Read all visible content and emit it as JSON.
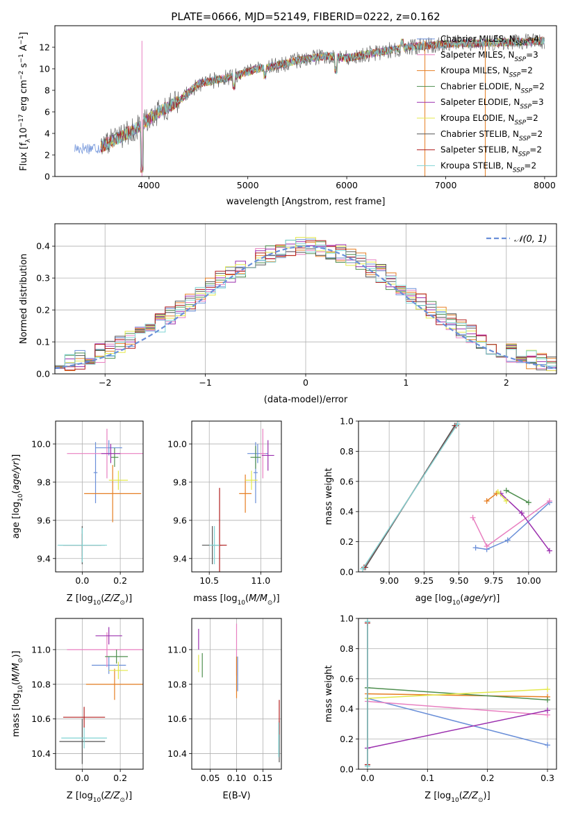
{
  "page_title": "PLATE=0666, MJD=52149, FIBERID=0222, z=0.162",
  "colors": {
    "chabrier_miles": "#6a8fd8",
    "salpeter_miles": "#e87fc0",
    "kroupa_miles": "#e67e22",
    "chabrier_elodie": "#4f8f4f",
    "salpeter_elodie": "#9b2fae",
    "kroupa_elodie": "#e3e84a",
    "chabrier_stelib": "#555555",
    "salpeter_stelib": "#b01e1e",
    "kroupa_stelib": "#7fd3d3",
    "normal_curve": "#6a8fd8",
    "grid": "#b0b0b0"
  },
  "chart_data": [
    {
      "type": "line",
      "title": "PLATE=0666, MJD=52149, FIBERID=0222, z=0.162",
      "xlabel": "wavelength [Angstrom, rest frame]",
      "ylabel": "Flux [fλ10⁻¹⁷ erg cm⁻² s⁻¹ A⁻¹]",
      "xlim": [
        3050,
        8120
      ],
      "ylim": [
        0,
        14
      ],
      "xticks": [
        4000,
        5000,
        6000,
        7000,
        8000
      ],
      "yticks": [
        0,
        2,
        4,
        6,
        8,
        10,
        12
      ],
      "grid": false,
      "legend_position": "bottom-right",
      "series": [
        {
          "name": "Chabrier MILES, N_SSP=4",
          "key": "chabrier_miles"
        },
        {
          "name": "Salpeter MILES, N_SSP=3",
          "key": "salpeter_miles"
        },
        {
          "name": "Kroupa MILES, N_SSP=2",
          "key": "kroupa_miles"
        },
        {
          "name": "Chabrier ELODIE, N_SSP=2",
          "key": "chabrier_elodie"
        },
        {
          "name": "Salpeter ELODIE, N_SSP=3",
          "key": "salpeter_elodie"
        },
        {
          "name": "Kroupa ELODIE, N_SSP=2",
          "key": "kroupa_elodie"
        },
        {
          "name": "Chabrier STELIB, N_SSP=2",
          "key": "chabrier_stelib"
        },
        {
          "name": "Salpeter STELIB, N_SSP=2",
          "key": "salpeter_stelib"
        },
        {
          "name": "Kroupa STELIB, N_SSP=2",
          "key": "kroupa_stelib"
        }
      ],
      "continuum": {
        "x": [
          3250,
          3500,
          3700,
          3900,
          4100,
          4300,
          4500,
          4700,
          4900,
          5100,
          5300,
          5500,
          5800,
          6000,
          6300,
          6600,
          7000,
          7400,
          7800,
          8000
        ],
        "y": [
          2.6,
          2.7,
          3.6,
          4.6,
          6.0,
          7.0,
          8.6,
          9.0,
          9.4,
          10.0,
          10.3,
          10.8,
          11.2,
          11.0,
          11.5,
          12.0,
          12.3,
          12.4,
          12.5,
          12.6
        ]
      },
      "dips": [
        {
          "x": 3930,
          "y": 0.3
        },
        {
          "x": 4860,
          "y": 8.0
        },
        {
          "x": 5175,
          "y": 9.0
        },
        {
          "x": 5890,
          "y": 9.5
        },
        {
          "x": 6560,
          "y": 12.0
        }
      ]
    },
    {
      "type": "line",
      "xlabel": "(data-model)/error",
      "ylabel": "Normed distribution",
      "xlim": [
        -2.5,
        2.5
      ],
      "ylim": [
        0,
        0.47
      ],
      "xticks": [
        -2,
        -1,
        0,
        1,
        2
      ],
      "yticks": [
        0.0,
        0.1,
        0.2,
        0.3,
        0.4
      ],
      "grid": true,
      "legend": "𝒩(0, 1)",
      "normal_mu": 0,
      "normal_sigma": 1,
      "bin_width": 0.1,
      "bins_from": -2.5,
      "bins_to": 2.5
    },
    {
      "type": "scatter",
      "xlabel": "Z [log10(Z/Z⊙)]",
      "ylabel": "age  [log10(age/yr)]",
      "xlim": [
        -0.14,
        0.32
      ],
      "ylim": [
        9.33,
        10.12
      ],
      "xticks": [
        0.0,
        0.2
      ],
      "yticks": [
        9.4,
        9.6,
        9.8,
        10.0
      ],
      "grid": true,
      "points": [
        {
          "key": "chabrier_miles",
          "x": 0.14,
          "y": 9.98,
          "xerr": 0.07,
          "yerr": 0.04
        },
        {
          "key": "chabrier_miles",
          "x": 0.07,
          "y": 9.85,
          "xerr": 0.01,
          "yerr": 0.16
        },
        {
          "key": "salpeter_miles",
          "x": 0.13,
          "y": 9.95,
          "xerr": 0.21,
          "yerr": 0.13
        },
        {
          "key": "kroupa_miles",
          "x": 0.16,
          "y": 9.74,
          "xerr": 0.15,
          "yerr": 0.15
        },
        {
          "key": "chabrier_elodie",
          "x": 0.17,
          "y": 9.93,
          "xerr": 0.02,
          "yerr": 0.05
        },
        {
          "key": "salpeter_elodie",
          "x": 0.15,
          "y": 9.95,
          "xerr": 0.05,
          "yerr": 0.05
        },
        {
          "key": "kroupa_elodie",
          "x": 0.19,
          "y": 9.81,
          "xerr": 0.05,
          "yerr": 0.05
        },
        {
          "key": "chabrier_stelib",
          "x": 0.0,
          "y": 9.47,
          "xerr": 0.12,
          "yerr": 0.1
        },
        {
          "key": "salpeter_stelib",
          "x": 0.0,
          "y": 9.47,
          "xerr": 0.1,
          "yerr": 0.06
        },
        {
          "key": "kroupa_stelib",
          "x": 0.0,
          "y": 9.47,
          "xerr": 0.13,
          "yerr": 0.09
        }
      ]
    },
    {
      "type": "scatter",
      "xlabel": "mass [log10(M/M⊙)]",
      "ylabel": "",
      "xlim": [
        10.33,
        11.2
      ],
      "ylim": [
        9.33,
        10.12
      ],
      "xticks": [
        10.5,
        11.0
      ],
      "yticks": [
        9.4,
        9.6,
        9.8,
        10.0
      ],
      "grid": true,
      "points": [
        {
          "key": "chabrier_miles",
          "x": 10.97,
          "y": 9.95,
          "xerr": 0.1,
          "yerr": 0.05
        },
        {
          "key": "chabrier_miles",
          "x": 10.95,
          "y": 9.85,
          "xerr": 0.02,
          "yerr": 0.16
        },
        {
          "key": "salpeter_miles",
          "x": 11.02,
          "y": 9.95,
          "xerr": 0.03,
          "yerr": 0.13
        },
        {
          "key": "kroupa_miles",
          "x": 10.85,
          "y": 9.74,
          "xerr": 0.06,
          "yerr": 0.1
        },
        {
          "key": "chabrier_elodie",
          "x": 10.95,
          "y": 9.93,
          "xerr": 0.05,
          "yerr": 0.06
        },
        {
          "key": "salpeter_elodie",
          "x": 11.07,
          "y": 9.94,
          "xerr": 0.06,
          "yerr": 0.08
        },
        {
          "key": "kroupa_elodie",
          "x": 10.91,
          "y": 9.81,
          "xerr": 0.06,
          "yerr": 0.05
        },
        {
          "key": "chabrier_stelib",
          "x": 10.53,
          "y": 9.47,
          "xerr": 0.1,
          "yerr": 0.1
        },
        {
          "key": "salpeter_stelib",
          "x": 10.6,
          "y": 9.47,
          "xerr": 0.07,
          "yerr": 0.3
        },
        {
          "key": "kroupa_stelib",
          "x": 10.55,
          "y": 9.47,
          "xerr": 0.05,
          "yerr": 0.1
        }
      ]
    },
    {
      "type": "line",
      "xlabel": "age  [log10(age/yr)]",
      "ylabel": "mass weight",
      "xlim": [
        8.78,
        10.2
      ],
      "ylim": [
        0,
        1.0
      ],
      "xticks": [
        9.0,
        9.25,
        9.5,
        9.75,
        10.0
      ],
      "yticks": [
        0.0,
        0.2,
        0.4,
        0.6,
        0.8,
        1.0
      ],
      "grid": true,
      "series": [
        {
          "key": "chabrier_miles",
          "x": [
            9.62,
            9.7,
            9.85,
            10.15
          ],
          "y": [
            0.16,
            0.15,
            0.21,
            0.46
          ]
        },
        {
          "key": "salpeter_miles",
          "x": [
            9.6,
            9.7,
            10.15
          ],
          "y": [
            0.36,
            0.17,
            0.47
          ]
        },
        {
          "key": "kroupa_miles",
          "x": [
            9.7,
            9.77
          ],
          "y": [
            0.47,
            0.52
          ]
        },
        {
          "key": "chabrier_elodie",
          "x": [
            9.84,
            10.0
          ],
          "y": [
            0.54,
            0.46
          ]
        },
        {
          "key": "salpeter_elodie",
          "x": [
            9.8,
            9.95,
            10.15
          ],
          "y": [
            0.52,
            0.39,
            0.14
          ]
        },
        {
          "key": "kroupa_elodie",
          "x": [
            9.78,
            9.84
          ],
          "y": [
            0.53,
            0.47
          ]
        },
        {
          "key": "chabrier_stelib",
          "x": [
            8.83,
            9.47
          ],
          "y": [
            0.03,
            0.97
          ]
        },
        {
          "key": "salpeter_stelib",
          "x": [
            8.82,
            9.48
          ],
          "y": [
            0.03,
            0.97
          ]
        },
        {
          "key": "kroupa_stelib",
          "x": [
            8.81,
            9.49
          ],
          "y": [
            0.02,
            0.98
          ]
        }
      ]
    },
    {
      "type": "scatter",
      "xlabel": "Z [log10(Z/Z⊙)]",
      "ylabel": "mass [log10(M/M⊙)]",
      "xlim": [
        -0.14,
        0.32
      ],
      "ylim": [
        10.31,
        11.18
      ],
      "xticks": [
        0.0,
        0.2
      ],
      "yticks": [
        10.4,
        10.6,
        10.8,
        11.0
      ],
      "grid": true,
      "points": [
        {
          "key": "chabrier_miles",
          "x": 0.14,
          "y": 10.91,
          "xerr": 0.09,
          "yerr": 0.05
        },
        {
          "key": "salpeter_miles",
          "x": 0.13,
          "y": 11.0,
          "xerr": 0.21,
          "yerr": 0.1
        },
        {
          "key": "kroupa_miles",
          "x": 0.17,
          "y": 10.8,
          "xerr": 0.15,
          "yerr": 0.09
        },
        {
          "key": "chabrier_elodie",
          "x": 0.18,
          "y": 10.96,
          "xerr": 0.06,
          "yerr": 0.04
        },
        {
          "key": "salpeter_elodie",
          "x": 0.14,
          "y": 11.08,
          "xerr": 0.07,
          "yerr": 0.05
        },
        {
          "key": "kroupa_elodie",
          "x": 0.19,
          "y": 10.88,
          "xerr": 0.05,
          "yerr": 0.05
        },
        {
          "key": "chabrier_stelib",
          "x": 0.0,
          "y": 10.47,
          "xerr": 0.12,
          "yerr": 0.13
        },
        {
          "key": "salpeter_stelib",
          "x": 0.01,
          "y": 10.61,
          "xerr": 0.11,
          "yerr": 0.06
        },
        {
          "key": "kroupa_stelib",
          "x": 0.01,
          "y": 10.49,
          "xerr": 0.12,
          "yerr": 0.06
        }
      ]
    },
    {
      "type": "scatter",
      "xlabel": "E(B-V)",
      "ylabel": "",
      "xlim": [
        0.015,
        0.185
      ],
      "ylim": [
        10.31,
        11.18
      ],
      "xticks": [
        0.05,
        0.1,
        0.15
      ],
      "yticks": [
        10.4,
        10.6,
        10.8,
        11.0
      ],
      "grid": true,
      "points": [
        {
          "key": "chabrier_miles",
          "x": 0.102,
          "y": 10.86,
          "xerr": 0,
          "yerr": 0.1
        },
        {
          "key": "salpeter_miles",
          "x": 0.1,
          "y": 11.0,
          "xerr": 0,
          "yerr": 0.15
        },
        {
          "key": "kroupa_miles",
          "x": 0.1,
          "y": 10.84,
          "xerr": 0,
          "yerr": 0.12
        },
        {
          "key": "chabrier_elodie",
          "x": 0.035,
          "y": 10.91,
          "xerr": 0,
          "yerr": 0.07
        },
        {
          "key": "salpeter_elodie",
          "x": 0.028,
          "y": 11.06,
          "xerr": 0,
          "yerr": 0.06
        },
        {
          "key": "kroupa_elodie",
          "x": 0.028,
          "y": 10.92,
          "xerr": 0,
          "yerr": 0.05
        },
        {
          "key": "chabrier_stelib",
          "x": 0.181,
          "y": 10.47,
          "xerr": 0,
          "yerr": 0.12
        },
        {
          "key": "salpeter_stelib",
          "x": 0.181,
          "y": 10.61,
          "xerr": 0,
          "yerr": 0.1
        },
        {
          "key": "kroupa_stelib",
          "x": 0.18,
          "y": 10.48,
          "xerr": 0,
          "yerr": 0.1
        }
      ]
    },
    {
      "type": "line",
      "xlabel": "Z [log10(Z/Z⊙)]",
      "ylabel": "mass weight",
      "xlim": [
        -0.015,
        0.315
      ],
      "ylim": [
        0,
        1.0
      ],
      "xticks": [
        0.0,
        0.1,
        0.2,
        0.3
      ],
      "yticks": [
        0.0,
        0.2,
        0.4,
        0.6,
        0.8,
        1.0
      ],
      "grid": true,
      "series": [
        {
          "key": "chabrier_miles",
          "x": [
            0.0,
            0.3
          ],
          "y": [
            0.47,
            0.16
          ]
        },
        {
          "key": "salpeter_miles",
          "x": [
            0.0,
            0.3
          ],
          "y": [
            0.45,
            0.36
          ]
        },
        {
          "key": "kroupa_miles",
          "x": [
            0.0,
            0.3
          ],
          "y": [
            0.5,
            0.48
          ]
        },
        {
          "key": "chabrier_elodie",
          "x": [
            0.0,
            0.3
          ],
          "y": [
            0.54,
            0.46
          ]
        },
        {
          "key": "salpeter_elodie",
          "x": [
            0.0,
            0.3
          ],
          "y": [
            0.14,
            0.39
          ]
        },
        {
          "key": "kroupa_elodie",
          "x": [
            0.0,
            0.3
          ],
          "y": [
            0.47,
            0.53
          ]
        },
        {
          "key": "chabrier_stelib",
          "x": [
            0.0,
            0.0
          ],
          "y": [
            0.03,
            0.97
          ]
        },
        {
          "key": "salpeter_stelib",
          "x": [
            0.0,
            0.0
          ],
          "y": [
            0.03,
            0.97
          ]
        },
        {
          "key": "kroupa_stelib",
          "x": [
            0.0,
            0.0
          ],
          "y": [
            0.02,
            0.98
          ]
        }
      ]
    }
  ]
}
